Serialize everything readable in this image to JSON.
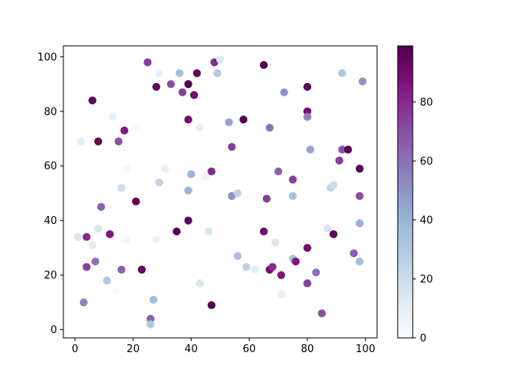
{
  "chart_data": {
    "type": "scatter",
    "title": "",
    "xlabel": "",
    "ylabel": "",
    "xlim": [
      -4,
      104
    ],
    "ylim": [
      -3,
      104
    ],
    "xticks": [
      0,
      20,
      40,
      60,
      80,
      100
    ],
    "yticks": [
      0,
      20,
      40,
      60,
      80,
      100
    ],
    "grid": false,
    "colormap": "BuPu",
    "color_range": [
      0,
      99
    ],
    "colorbar_ticks": [
      0,
      20,
      40,
      60,
      80
    ],
    "colorbar_stops": [
      "#f7fcfd",
      "#e0ecf4",
      "#bfd3e6",
      "#9ebcda",
      "#8c96c6",
      "#8c6bb1",
      "#88419d",
      "#810f7c",
      "#4d004b"
    ],
    "points": [
      {
        "x": 1,
        "y": 34,
        "c": 15
      },
      {
        "x": 2,
        "y": 69,
        "c": 10
      },
      {
        "x": 3,
        "y": 10,
        "c": 55
      },
      {
        "x": 4,
        "y": 34,
        "c": 80
      },
      {
        "x": 4,
        "y": 23,
        "c": 75
      },
      {
        "x": 6,
        "y": 31,
        "c": 12
      },
      {
        "x": 6,
        "y": 84,
        "c": 95
      },
      {
        "x": 7,
        "y": 25,
        "c": 60
      },
      {
        "x": 8,
        "y": 69,
        "c": 95
      },
      {
        "x": 8,
        "y": 37,
        "c": 15
      },
      {
        "x": 9,
        "y": 45,
        "c": 65
      },
      {
        "x": 11,
        "y": 18,
        "c": 30
      },
      {
        "x": 12,
        "y": 35,
        "c": 85
      },
      {
        "x": 13,
        "y": 78,
        "c": 10
      },
      {
        "x": 14,
        "y": 14,
        "c": 2
      },
      {
        "x": 15,
        "y": 69,
        "c": 70
      },
      {
        "x": 16,
        "y": 52,
        "c": 20
      },
      {
        "x": 16,
        "y": 22,
        "c": 65
      },
      {
        "x": 17,
        "y": 73,
        "c": 85
      },
      {
        "x": 18,
        "y": 59,
        "c": 3
      },
      {
        "x": 18,
        "y": 33,
        "c": 5
      },
      {
        "x": 21,
        "y": 47,
        "c": 95
      },
      {
        "x": 21,
        "y": 74,
        "c": 2
      },
      {
        "x": 23,
        "y": 22,
        "c": 95
      },
      {
        "x": 25,
        "y": 98,
        "c": 75
      },
      {
        "x": 26,
        "y": 4,
        "c": 65
      },
      {
        "x": 26,
        "y": 2,
        "c": 30
      },
      {
        "x": 27,
        "y": 11,
        "c": 35
      },
      {
        "x": 28,
        "y": 89,
        "c": 95
      },
      {
        "x": 28,
        "y": 33,
        "c": 8
      },
      {
        "x": 29,
        "y": 54,
        "c": 25
      },
      {
        "x": 29,
        "y": 94,
        "c": 10
      },
      {
        "x": 31,
        "y": 59,
        "c": 10
      },
      {
        "x": 33,
        "y": 90,
        "c": 70
      },
      {
        "x": 35,
        "y": 36,
        "c": 98
      },
      {
        "x": 36,
        "y": 94,
        "c": 35
      },
      {
        "x": 37,
        "y": 87,
        "c": 75
      },
      {
        "x": 39,
        "y": 90,
        "c": 98
      },
      {
        "x": 39,
        "y": 77,
        "c": 90
      },
      {
        "x": 39,
        "y": 51,
        "c": 40
      },
      {
        "x": 39,
        "y": 40,
        "c": 95
      },
      {
        "x": 40,
        "y": 57,
        "c": 40
      },
      {
        "x": 41,
        "y": 86,
        "c": 90
      },
      {
        "x": 42,
        "y": 94,
        "c": 95
      },
      {
        "x": 43,
        "y": 74,
        "c": 10
      },
      {
        "x": 43,
        "y": 17,
        "c": 15
      },
      {
        "x": 45,
        "y": 56,
        "c": 5
      },
      {
        "x": 46,
        "y": 36,
        "c": 15
      },
      {
        "x": 47,
        "y": 58,
        "c": 80
      },
      {
        "x": 47,
        "y": 9,
        "c": 99
      },
      {
        "x": 48,
        "y": 98,
        "c": 80
      },
      {
        "x": 49,
        "y": 94,
        "c": 30
      },
      {
        "x": 50,
        "y": 99,
        "c": 15
      },
      {
        "x": 53,
        "y": 76,
        "c": 45
      },
      {
        "x": 54,
        "y": 67,
        "c": 75
      },
      {
        "x": 54,
        "y": 49,
        "c": 50
      },
      {
        "x": 56,
        "y": 50,
        "c": 25
      },
      {
        "x": 56,
        "y": 27,
        "c": 35
      },
      {
        "x": 58,
        "y": 77,
        "c": 98
      },
      {
        "x": 59,
        "y": 23,
        "c": 25
      },
      {
        "x": 62,
        "y": 22,
        "c": 10
      },
      {
        "x": 65,
        "y": 97,
        "c": 98
      },
      {
        "x": 65,
        "y": 36,
        "c": 90
      },
      {
        "x": 66,
        "y": 48,
        "c": 75
      },
      {
        "x": 67,
        "y": 74,
        "c": 60
      },
      {
        "x": 67,
        "y": 22,
        "c": 90
      },
      {
        "x": 68,
        "y": 23,
        "c": 80
      },
      {
        "x": 69,
        "y": 32,
        "c": 15
      },
      {
        "x": 70,
        "y": 58,
        "c": 65
      },
      {
        "x": 71,
        "y": 20,
        "c": 85
      },
      {
        "x": 71,
        "y": 13,
        "c": 10
      },
      {
        "x": 72,
        "y": 87,
        "c": 50
      },
      {
        "x": 75,
        "y": 55,
        "c": 75
      },
      {
        "x": 75,
        "y": 49,
        "c": 35
      },
      {
        "x": 75,
        "y": 26,
        "c": 35
      },
      {
        "x": 76,
        "y": 25,
        "c": 85
      },
      {
        "x": 80,
        "y": 89,
        "c": 95
      },
      {
        "x": 80,
        "y": 80,
        "c": 90
      },
      {
        "x": 80,
        "y": 78,
        "c": 55
      },
      {
        "x": 80,
        "y": 30,
        "c": 90
      },
      {
        "x": 80,
        "y": 17,
        "c": 75
      },
      {
        "x": 81,
        "y": 66,
        "c": 45
      },
      {
        "x": 83,
        "y": 21,
        "c": 60
      },
      {
        "x": 85,
        "y": 6,
        "c": 70
      },
      {
        "x": 87,
        "y": 37,
        "c": 15
      },
      {
        "x": 88,
        "y": 52,
        "c": 25
      },
      {
        "x": 89,
        "y": 53,
        "c": 20
      },
      {
        "x": 89,
        "y": 35,
        "c": 95
      },
      {
        "x": 91,
        "y": 62,
        "c": 75
      },
      {
        "x": 92,
        "y": 66,
        "c": 70
      },
      {
        "x": 92,
        "y": 94,
        "c": 30
      },
      {
        "x": 94,
        "y": 66,
        "c": 98
      },
      {
        "x": 96,
        "y": 28,
        "c": 65
      },
      {
        "x": 98,
        "y": 59,
        "c": 98
      },
      {
        "x": 98,
        "y": 49,
        "c": 70
      },
      {
        "x": 98,
        "y": 39,
        "c": 40
      },
      {
        "x": 98,
        "y": 25,
        "c": 35
      },
      {
        "x": 99,
        "y": 91,
        "c": 50
      }
    ]
  }
}
